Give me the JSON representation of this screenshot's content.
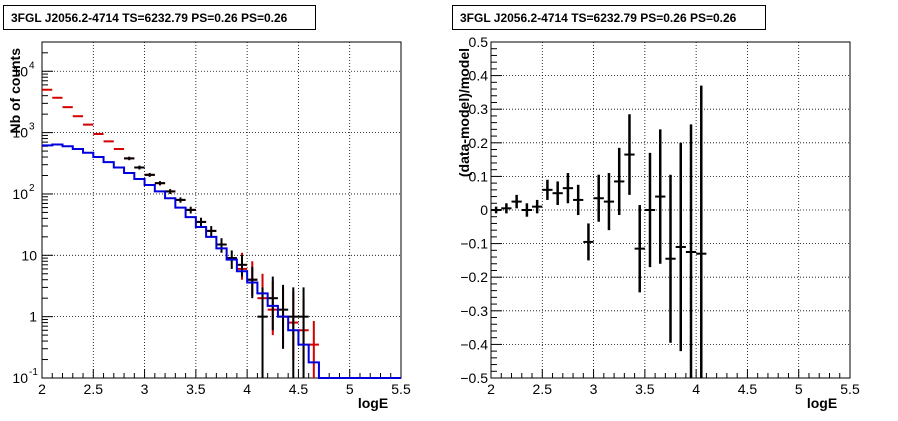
{
  "chart_data": [
    {
      "type": "histogram",
      "title": "3FGL J2056.2-4714 TS=6232.79 PS=0.26 PS=0.26",
      "xlabel": "logE",
      "ylabel": "Nb of counts",
      "xlim": [
        2,
        5.5
      ],
      "ylim": [
        0.1,
        30000
      ],
      "yscale": "log",
      "grid": true,
      "x_ticks": [
        "2",
        "2.5",
        "3",
        "3.5",
        "4",
        "4.5",
        "5",
        "5.5"
      ],
      "y_ticks": [
        {
          "label": "10",
          "exp": "-1",
          "value": 0.1
        },
        {
          "label": "1",
          "exp": "",
          "value": 1
        },
        {
          "label": "10",
          "exp": "",
          "value": 10
        },
        {
          "label": "10",
          "exp": "2",
          "value": 100
        },
        {
          "label": "10",
          "exp": "3",
          "value": 1000
        },
        {
          "label": "10",
          "exp": "4",
          "value": 10000
        }
      ],
      "bin_width": 0.1,
      "series": [
        {
          "color": "#d40000",
          "style": "markers-with-errors",
          "x": [
            2.05,
            2.15,
            2.25,
            2.35,
            2.45,
            2.55,
            2.65,
            2.75,
            2.85,
            2.95,
            3.05,
            3.15,
            3.25,
            3.35,
            3.45,
            3.55,
            3.65,
            3.75,
            3.85,
            3.95,
            4.05,
            4.15,
            4.25,
            4.35,
            4.45,
            4.55,
            4.65
          ],
          "y": [
            5000,
            3700,
            2600,
            1850,
            1350,
            950,
            720,
            540,
            380,
            270,
            205,
            150,
            110,
            80,
            55,
            35,
            25,
            15,
            9,
            6,
            4,
            2,
            1.3,
            1,
            0.8,
            0.6,
            0.35
          ],
          "err_low": [
            0,
            0,
            0,
            0,
            0,
            0,
            0,
            0,
            0,
            0,
            0,
            0,
            0,
            0,
            0,
            0,
            0,
            0,
            0,
            2,
            1.8,
            1.0,
            0.8,
            0.7,
            0.6,
            0.45,
            0.25
          ],
          "err_high": [
            0,
            0,
            0,
            0,
            0,
            0,
            0,
            0,
            0,
            0,
            0,
            0,
            0,
            0,
            0,
            0,
            0,
            0,
            0,
            5,
            4,
            3,
            2.5,
            2,
            1.8,
            1.4,
            0.5
          ]
        },
        {
          "color": "#000000",
          "style": "markers-with-errors",
          "x": [
            2.85,
            2.95,
            3.05,
            3.15,
            3.25,
            3.35,
            3.45,
            3.55,
            3.65,
            3.75,
            3.85,
            3.95,
            4.05,
            4.15,
            4.25,
            4.35,
            4.45,
            4.55
          ],
          "y": [
            380,
            270,
            205,
            150,
            110,
            80,
            55,
            35,
            25,
            15,
            9,
            7,
            4,
            1,
            2,
            1.3,
            1,
            1
          ],
          "err_low": [
            25,
            20,
            15,
            12,
            10,
            8,
            7,
            6,
            5,
            4,
            3,
            2.5,
            2,
            0.9,
            1.4,
            1.0,
            0.9,
            0.9
          ],
          "err_high": [
            25,
            20,
            15,
            12,
            10,
            8,
            7,
            6,
            5,
            4,
            3,
            3,
            2.5,
            2,
            2.5,
            2,
            2,
            2
          ]
        },
        {
          "color": "#0000dd",
          "style": "step",
          "x": [
            2.05,
            2.15,
            2.25,
            2.35,
            2.45,
            2.55,
            2.65,
            2.75,
            2.85,
            2.95,
            3.05,
            3.15,
            3.25,
            3.35,
            3.45,
            3.55,
            3.65,
            3.75,
            3.85,
            3.95,
            4.05,
            4.15,
            4.25,
            4.35,
            4.45,
            4.55,
            4.65,
            4.75,
            4.85,
            4.95,
            5.05,
            5.15,
            5.25,
            5.35,
            5.45
          ],
          "y": [
            620,
            640,
            600,
            540,
            470,
            400,
            330,
            270,
            220,
            175,
            140,
            110,
            85,
            60,
            42,
            29,
            20,
            13,
            8.5,
            5.5,
            3.6,
            2.4,
            1.5,
            1.0,
            0.6,
            0.35,
            0.18,
            0.1,
            0.1,
            0.1,
            0.1,
            0.1,
            0.1,
            0.1,
            0.1
          ]
        }
      ]
    },
    {
      "type": "scatter",
      "title": "3FGL J2056.2-4714 TS=6232.79 PS=0.26 PS=0.26",
      "xlabel": "logE",
      "ylabel": "(data-model)/model",
      "xlim": [
        2,
        5.5
      ],
      "ylim": [
        -0.5,
        0.5
      ],
      "grid": true,
      "x_ticks": [
        "2",
        "2.5",
        "3",
        "3.5",
        "4",
        "4.5",
        "5",
        "5.5"
      ],
      "y_ticks": [
        "-0.5",
        "-0.4",
        "-0.3",
        "-0.2",
        "-0.1",
        "0",
        "0.1",
        "0.2",
        "0.3",
        "0.4",
        "0.5"
      ],
      "bin_width": 0.1,
      "series": [
        {
          "color": "#000000",
          "x": [
            2.05,
            2.15,
            2.25,
            2.35,
            2.45,
            2.55,
            2.65,
            2.75,
            2.85,
            2.95,
            3.05,
            3.15,
            3.25,
            3.35,
            3.45,
            3.55,
            3.65,
            3.75,
            3.85,
            3.95,
            4.05
          ],
          "y": [
            0.0,
            0.005,
            0.025,
            0.0,
            0.01,
            0.06,
            0.05,
            0.065,
            0.03,
            -0.095,
            0.035,
            0.025,
            0.085,
            0.165,
            -0.115,
            0.0,
            0.04,
            -0.145,
            -0.11,
            -0.125,
            -0.13
          ],
          "err": [
            0.01,
            0.015,
            0.02,
            0.02,
            0.02,
            0.03,
            0.035,
            0.045,
            0.045,
            0.055,
            0.07,
            0.085,
            0.1,
            0.12,
            0.13,
            0.17,
            0.2,
            0.25,
            0.31,
            0.38,
            0.5
          ]
        }
      ]
    }
  ]
}
